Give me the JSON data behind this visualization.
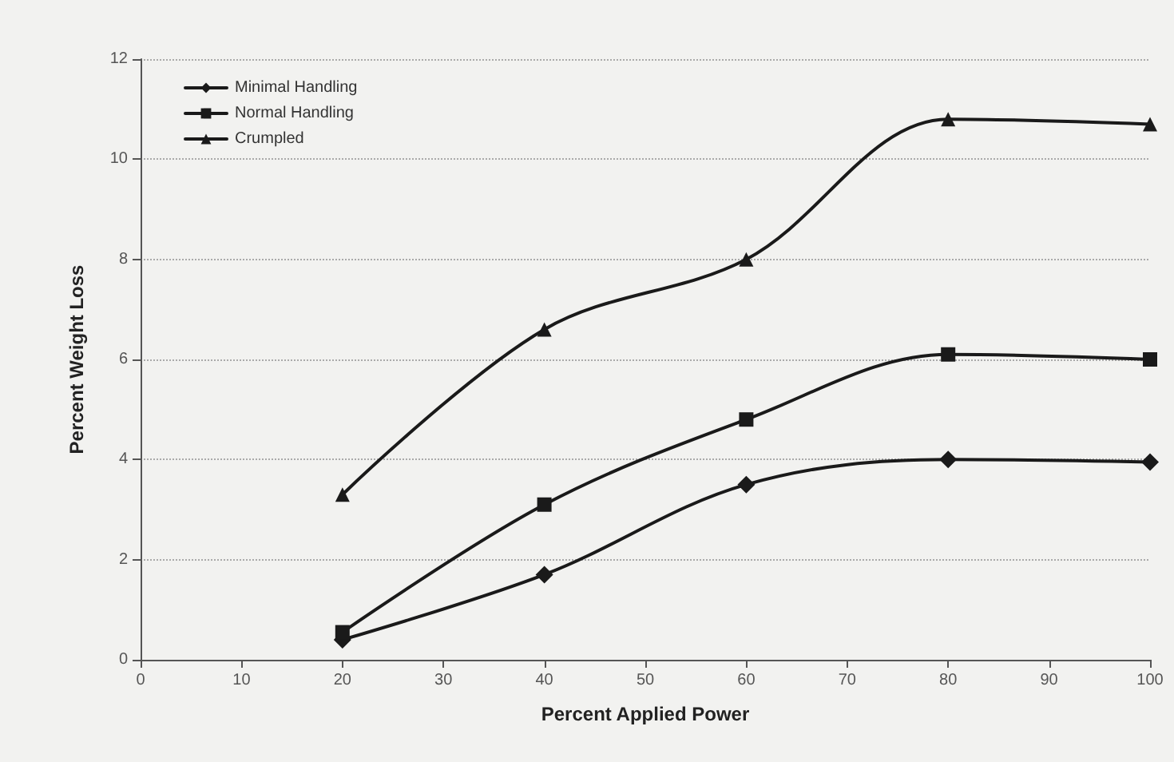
{
  "chart_data": {
    "type": "line",
    "xlabel": "Percent Applied Power",
    "ylabel": "Percent Weight Loss",
    "x": [
      20,
      40,
      60,
      80,
      100
    ],
    "series": [
      {
        "name": "Minimal Handling",
        "color": "#1a1a1a",
        "marker": "diamond",
        "values": [
          0.4,
          1.7,
          3.5,
          4.0,
          3.95
        ]
      },
      {
        "name": "Normal Handling",
        "color": "#1a1a1a",
        "marker": "square",
        "values": [
          0.55,
          3.1,
          4.8,
          6.1,
          6.0
        ]
      },
      {
        "name": "Crumpled",
        "color": "#1a1a1a",
        "marker": "triangle",
        "values": [
          3.3,
          6.6,
          8.0,
          10.8,
          10.7
        ]
      }
    ],
    "xlim": [
      0,
      100
    ],
    "xticks": [
      0,
      10,
      20,
      30,
      40,
      50,
      60,
      70,
      80,
      90,
      100
    ],
    "ylim": [
      0,
      12
    ],
    "yticks": [
      0,
      2,
      4,
      6,
      8,
      10,
      12
    ],
    "grid": "y",
    "legend": "top left",
    "line_style": "solid"
  }
}
